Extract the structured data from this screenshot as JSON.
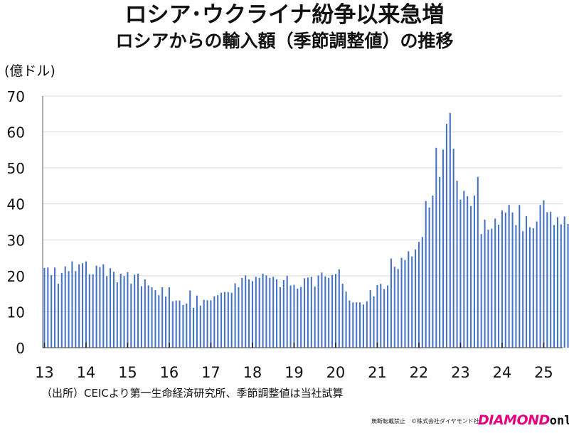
{
  "header": {
    "title": "ロシア･ウクライナ紛争以来急増",
    "subtitle": "ロシアからの輸入額（季節調整値）の推移"
  },
  "source_note": "（出所）CEICより第一生命経済研究所、季節調整値は当社試算",
  "credit": "無断転載禁止　©株式会社ダイヤモンド社",
  "logo": {
    "part1": "DIAMOND",
    "part2": "online"
  },
  "colors": {
    "bar": "#4472c4",
    "axis": "#595959",
    "text": "#111111",
    "logo_accent": "#e5007f"
  },
  "chart_data": {
    "type": "bar",
    "ylabel": "(億ドル)",
    "ylim": [
      0,
      70
    ],
    "yticks": [
      0,
      10,
      20,
      30,
      40,
      50,
      60,
      70
    ],
    "grid": true,
    "x_start": "2013-01",
    "x_frequency": "monthly",
    "year_tick_labels": [
      "13",
      "14",
      "15",
      "16",
      "17",
      "18",
      "19",
      "20",
      "21",
      "22",
      "23",
      "24",
      "25"
    ],
    "series": [
      {
        "values": [
          22.2,
          22.3,
          20.2,
          22.3,
          17.8,
          20.8,
          22.6,
          21.3,
          24.0,
          21.3,
          23.2,
          23.5,
          24.0,
          20.4,
          20.4,
          22.8,
          22.4,
          23.2,
          19.9,
          22.1,
          21.1,
          18.2,
          20.6,
          19.9,
          21.0,
          17.8,
          20.3,
          20.6,
          17.1,
          19.0,
          17.3,
          16.8,
          16.0,
          14.6,
          16.8,
          14.2,
          16.8,
          12.9,
          13.1,
          13.1,
          11.9,
          12.3,
          15.9,
          11.1,
          14.5,
          11.7,
          13.3,
          13.2,
          13.2,
          14.3,
          14.6,
          15.3,
          15.5,
          15.5,
          15.3,
          17.9,
          16.8,
          19.4,
          20.1,
          19.0,
          18.5,
          19.7,
          19.4,
          20.6,
          20.1,
          19.4,
          19.7,
          19.0,
          16.8,
          18.8,
          20.0,
          17.3,
          17.5,
          16.4,
          16.9,
          19.3,
          19.5,
          19.7,
          17.0,
          20.1,
          20.9,
          19.8,
          19.4,
          20.2,
          20.5,
          21.8,
          17.8,
          15.6,
          13.1,
          12.6,
          12.6,
          12.6,
          12.0,
          12.9,
          16.0,
          14.3,
          17.4,
          17.8,
          16.3,
          17.3,
          24.8,
          22.5,
          21.9,
          25.0,
          24.4,
          26.8,
          25.4,
          27.3,
          29.4,
          30.8,
          40.8,
          39.0,
          42.3,
          55.6,
          47.5,
          55.1,
          62.3,
          65.3,
          55.3,
          46.4,
          41.2,
          43.6,
          42.1,
          39.4,
          42.3,
          47.5,
          31.6,
          35.6,
          32.8,
          33.1,
          35.9,
          34.2,
          38.2,
          37.6,
          39.7,
          37.6,
          34.1,
          39.7,
          32.4,
          36.6,
          33.5,
          33.2,
          35.1,
          39.7,
          41.0,
          37.7,
          37.8,
          34.1,
          36.3,
          34.3,
          36.5,
          34.4
        ]
      }
    ]
  }
}
